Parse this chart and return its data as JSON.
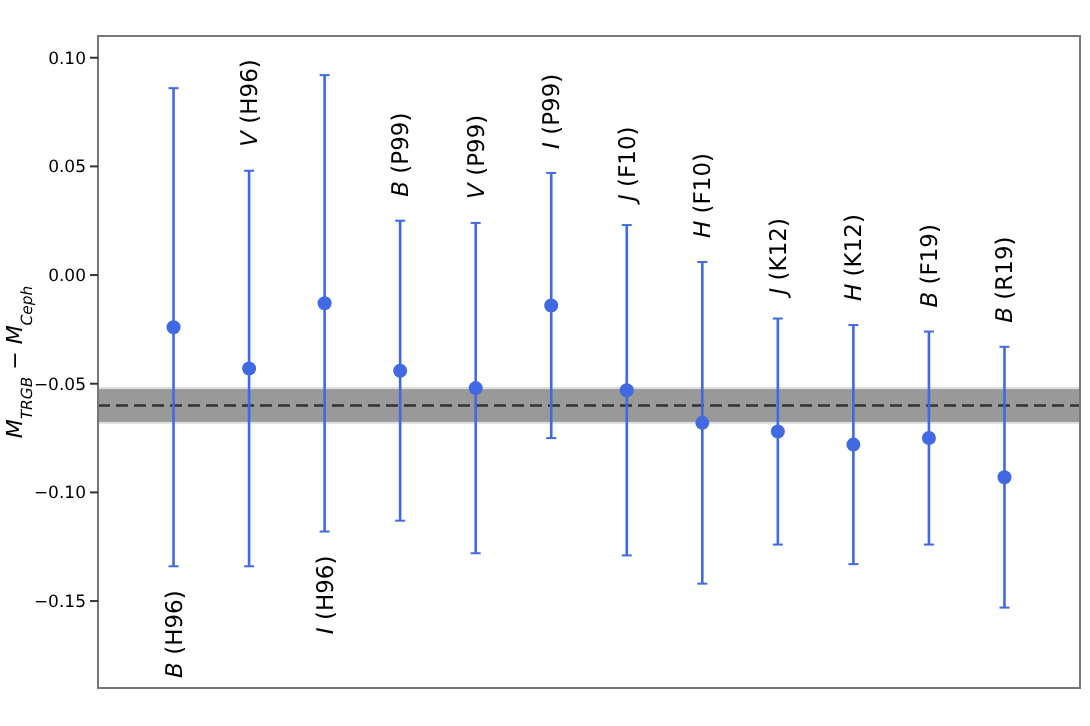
{
  "chart_data": {
    "type": "scatter",
    "ylabel": "M$_{TRGB}$ − M$_{Ceph}$",
    "categories": [
      null,
      null,
      null,
      null,
      null,
      null,
      null,
      null,
      null,
      null,
      null,
      null
    ],
    "series": [
      {
        "color": "#4169e1",
        "values": [
          -0.024,
          -0.043,
          -0.013,
          -0.044,
          -0.052,
          -0.014,
          -0.053,
          -0.068,
          -0.072,
          -0.078,
          -0.075,
          -0.093
        ],
        "errors": [
          [
            -0.134,
            0.086
          ],
          [
            -0.134,
            0.048
          ],
          [
            -0.118,
            0.092
          ],
          [
            -0.113,
            0.025
          ],
          [
            -0.128,
            0.024
          ],
          [
            -0.075,
            0.047
          ],
          [
            -0.129,
            0.023
          ],
          [
            -0.142,
            0.006
          ],
          [
            -0.124,
            -0.02
          ],
          [
            -0.133,
            -0.023
          ],
          [
            -0.124,
            -0.026
          ],
          [
            -0.153,
            -0.033
          ]
        ]
      }
    ],
    "marker": "circle",
    "ylim": [
      -0.19,
      0.11
    ],
    "yticks": [
      {
        "value": -0.15,
        "label": "−0.15"
      },
      {
        "value": -0.1,
        "label": "−0.10"
      },
      {
        "value": -0.05,
        "label": "−0.05"
      },
      {
        "value": 0,
        "label": "0.00"
      },
      {
        "value": 0.05,
        "label": "0.05"
      },
      {
        "value": 0.1,
        "label": "0.10"
      }
    ],
    "ref_lines": [
      {
        "axis": "y",
        "value": -0.06,
        "color": "#333333",
        "line_style": "dashed"
      }
    ],
    "bands": [
      {
        "axis": "y",
        "from": -0.068,
        "to": -0.052,
        "color": "#999999"
      }
    ],
    "annotations": [
      "B (H96)",
      "V (H96)",
      "I (H96)",
      "B (P99)",
      "V (P99)",
      "I (P99)",
      "J (F10)",
      "H (F10)",
      "J (K12)",
      "H (K12)",
      "B (F19)",
      "B (R19)"
    ],
    "grid": false
  }
}
